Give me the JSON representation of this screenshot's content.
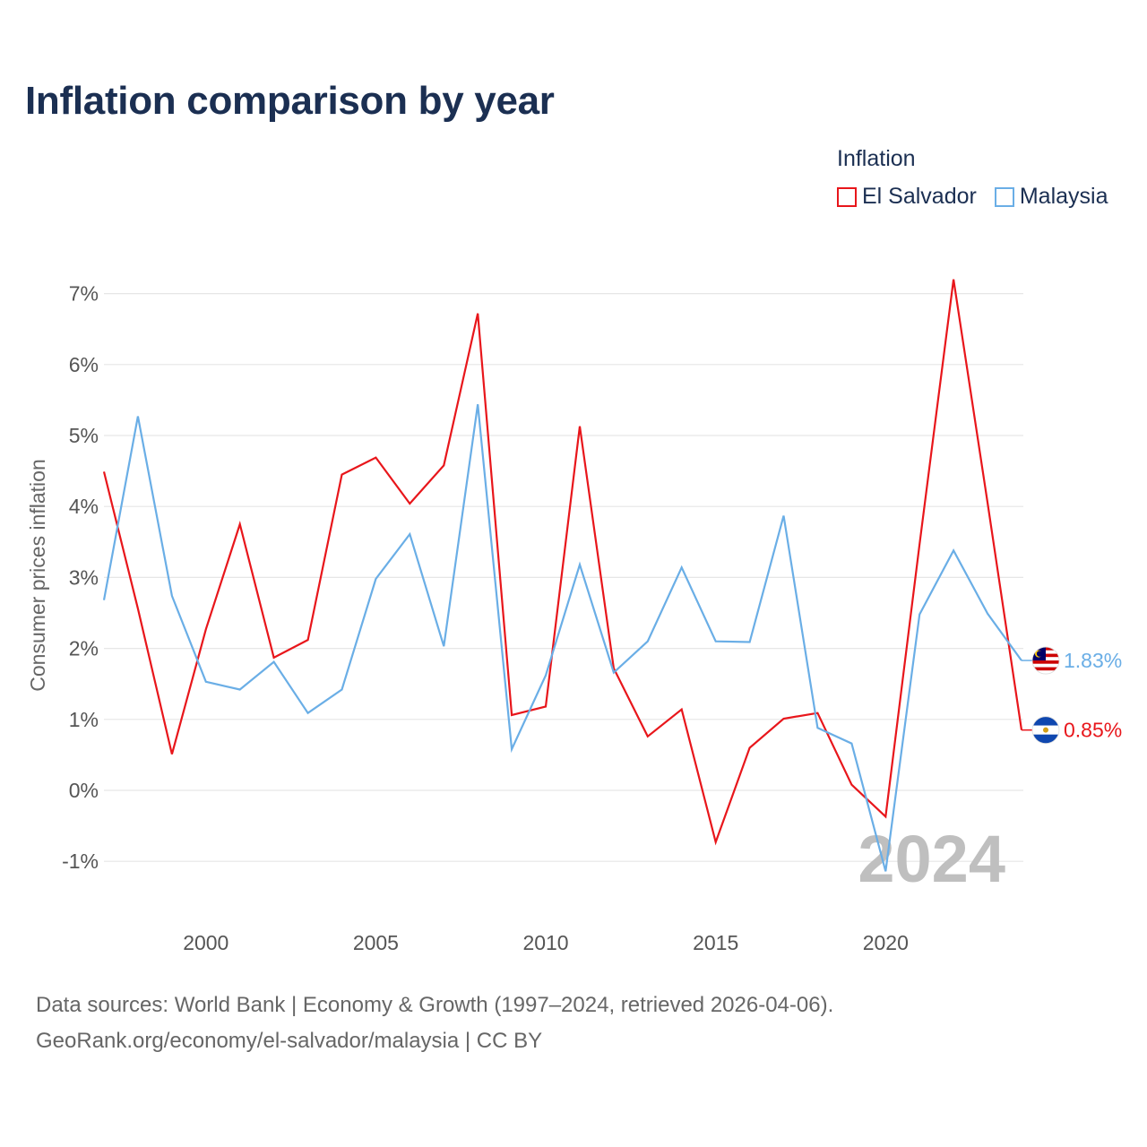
{
  "title": "Inflation comparison by year",
  "legend": {
    "title": "Inflation",
    "items": [
      {
        "label": "El Salvador",
        "color": "#e8161b"
      },
      {
        "label": "Malaysia",
        "color": "#6aaee6"
      }
    ]
  },
  "watermark_year": "2024",
  "footer": {
    "line1": "Data sources: World Bank | Economy & Growth (1997–2024, retrieved 2026-04-06).",
    "line2": "GeoRank.org/economy/el-salvador/malaysia | CC BY"
  },
  "chart_data": {
    "type": "line",
    "title": "Inflation comparison by year",
    "xlabel": "",
    "ylabel": "Consumer prices inflation",
    "xlim": [
      1997,
      2024
    ],
    "ylim": [
      -1.6,
      7.4
    ],
    "x_ticks": [
      2000,
      2005,
      2010,
      2015,
      2020
    ],
    "y_ticks": [
      -1,
      0,
      1,
      2,
      3,
      4,
      5,
      6,
      7
    ],
    "y_tick_labels": [
      "-1%",
      "0%",
      "1%",
      "2%",
      "3%",
      "4%",
      "5%",
      "6%",
      "7%"
    ],
    "grid": true,
    "x": [
      1997,
      1998,
      1999,
      2000,
      2001,
      2002,
      2003,
      2004,
      2005,
      2006,
      2007,
      2008,
      2009,
      2010,
      2011,
      2012,
      2013,
      2014,
      2015,
      2016,
      2017,
      2018,
      2019,
      2020,
      2021,
      2022,
      2023,
      2024
    ],
    "series": [
      {
        "name": "El Salvador",
        "color": "#e8161b",
        "end_label": "0.85%",
        "flag": "el-salvador-flag-icon",
        "values": [
          4.49,
          2.56,
          0.51,
          2.27,
          3.75,
          1.87,
          2.12,
          4.45,
          4.69,
          4.04,
          4.58,
          6.72,
          1.06,
          1.18,
          5.13,
          1.72,
          0.76,
          1.14,
          -0.73,
          0.6,
          1.01,
          1.09,
          0.08,
          -0.37,
          3.47,
          7.2,
          4.05,
          0.85
        ]
      },
      {
        "name": "Malaysia",
        "color": "#6aaee6",
        "end_label": "1.83%",
        "flag": "malaysia-flag-icon",
        "values": [
          2.68,
          5.27,
          2.74,
          1.53,
          1.42,
          1.81,
          1.09,
          1.42,
          2.98,
          3.61,
          2.03,
          5.44,
          0.58,
          1.62,
          3.18,
          1.66,
          2.1,
          3.14,
          2.1,
          2.09,
          3.87,
          0.88,
          0.66,
          -1.14,
          2.48,
          3.38,
          2.49,
          1.83
        ]
      }
    ]
  }
}
